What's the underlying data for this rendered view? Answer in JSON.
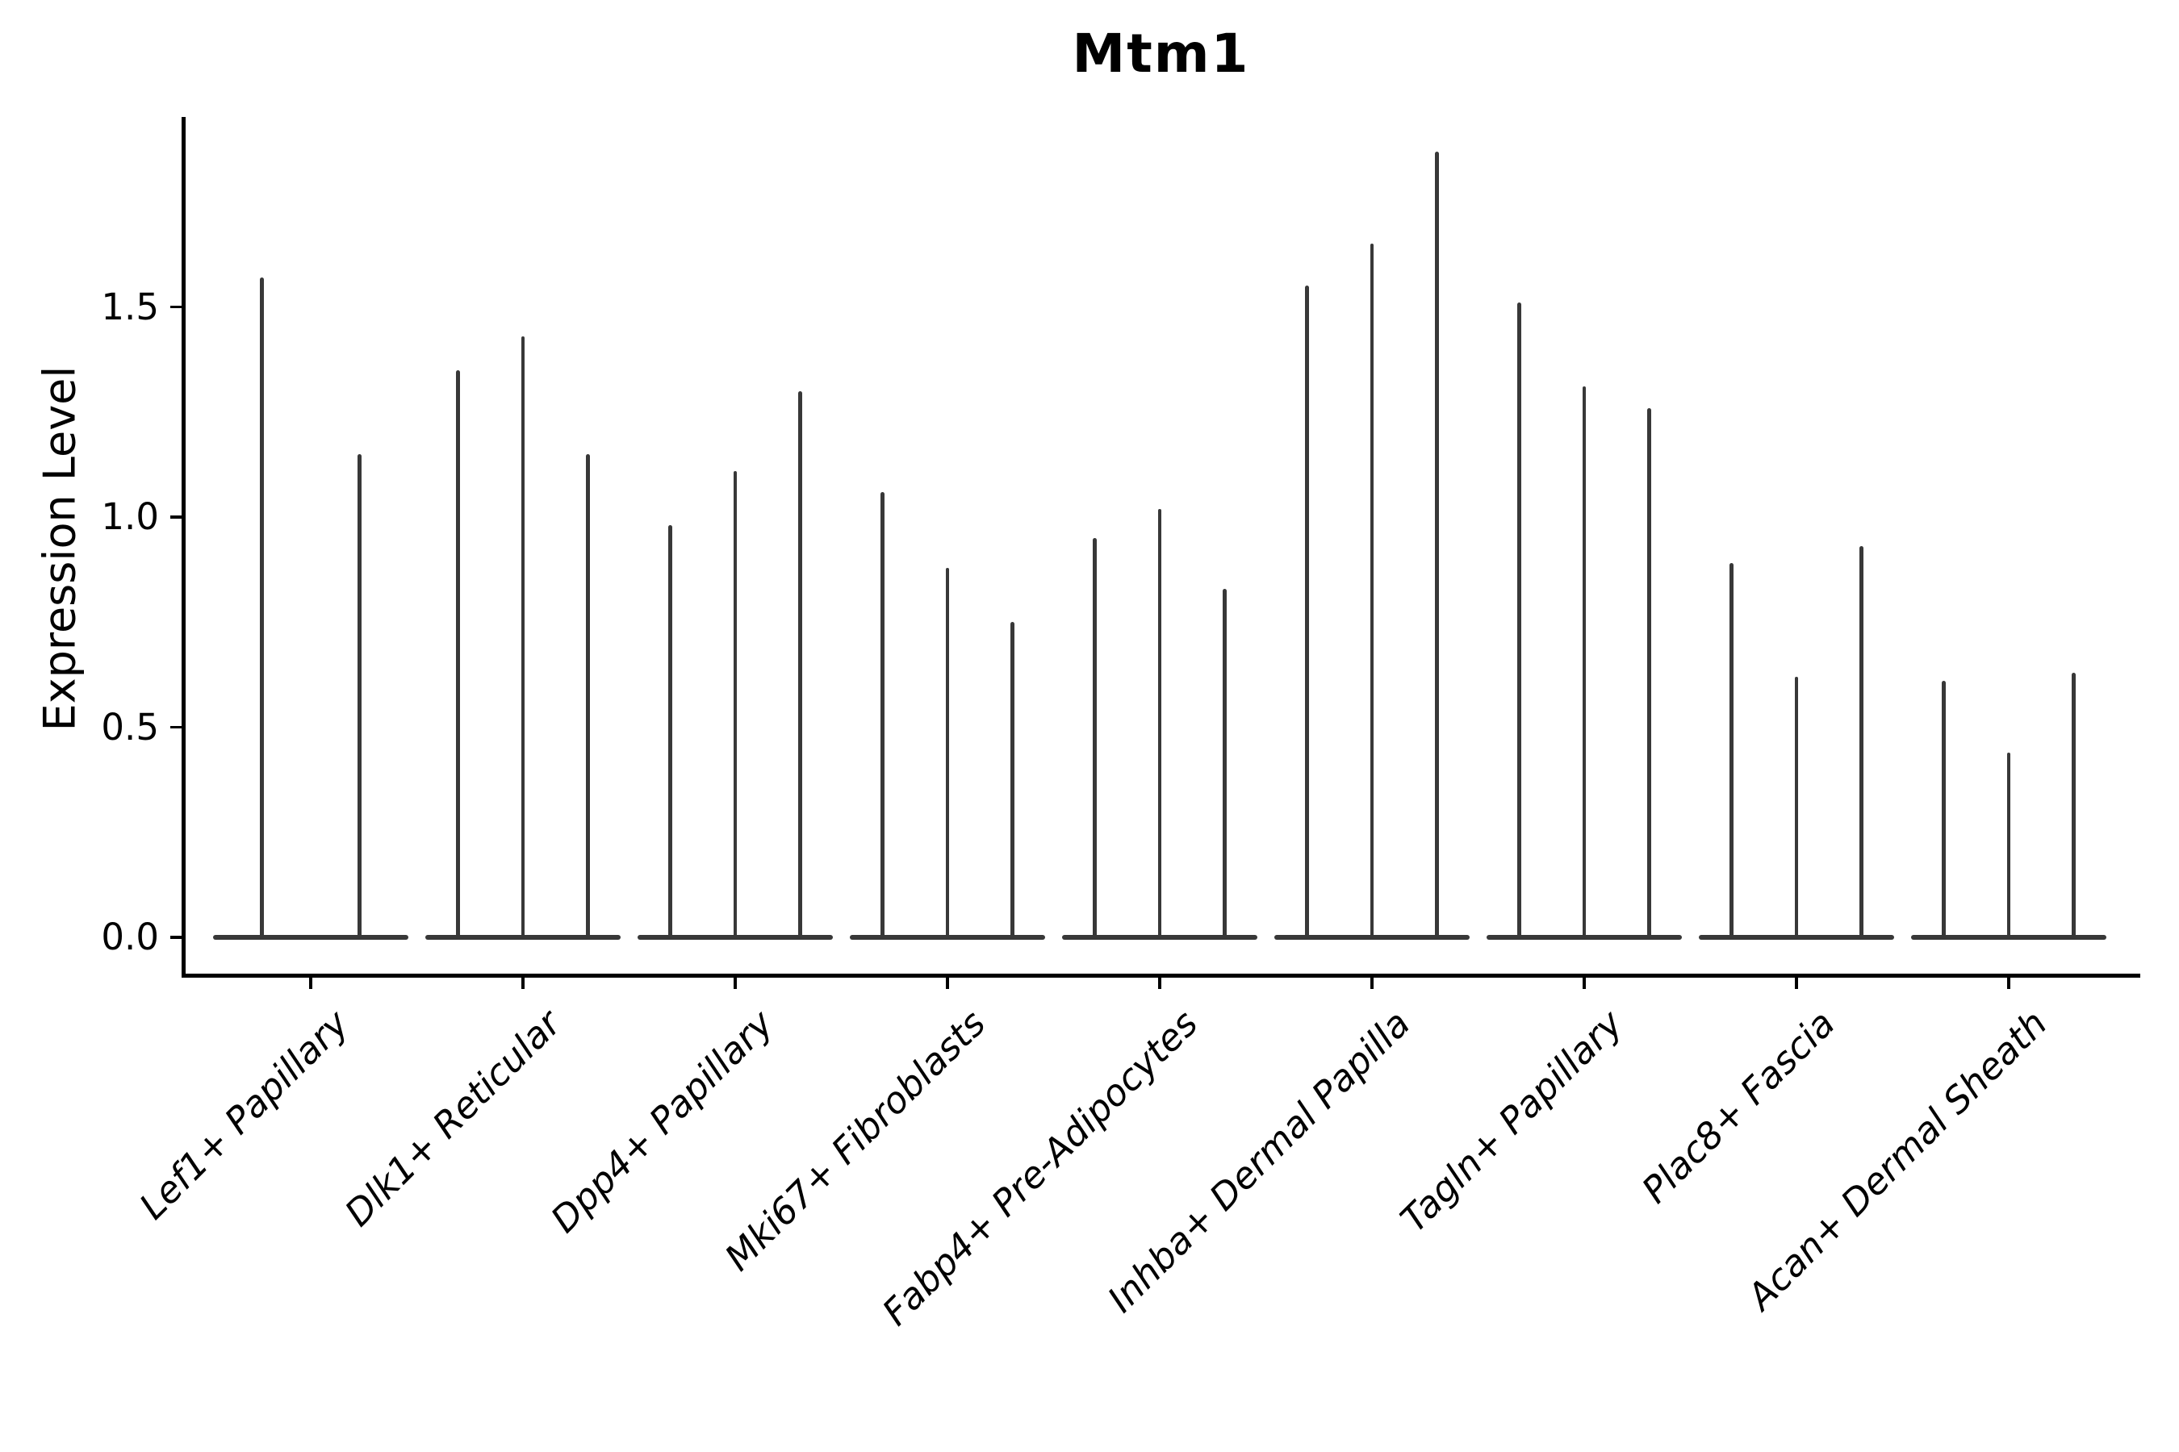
{
  "chart_data": {
    "type": "violin",
    "title": "Mtm1",
    "ylabel": "Expression Level",
    "xlabel": "",
    "ytick_labels": [
      "0.0",
      "0.5",
      "1.0",
      "1.5"
    ],
    "ylim": [
      -0.09,
      1.95
    ],
    "grid": false,
    "legend_position": "none",
    "description": "Needle-like violins: each violin is flat/wide at expression 0 with a thin spike up to its maximum expression value. Each category holds 2-3 violins.",
    "groups": [
      {
        "category": "Lef1+ Papillary",
        "violin_max_expression": [
          1.57,
          1.15
        ]
      },
      {
        "category": "Dlk1+ Reticular",
        "violin_max_expression": [
          1.35,
          1.43,
          1.15
        ]
      },
      {
        "category": "Dpp4+ Papillary",
        "violin_max_expression": [
          0.98,
          1.11,
          1.3
        ]
      },
      {
        "category": "Mki67+ Fibroblasts",
        "violin_max_expression": [
          1.06,
          0.88,
          0.75
        ]
      },
      {
        "category": "Fabp4+ Pre-Adipocytes",
        "violin_max_expression": [
          0.95,
          1.02,
          0.83
        ]
      },
      {
        "category": "Inhba+ Dermal Papilla",
        "violin_max_expression": [
          1.55,
          1.65,
          1.87
        ]
      },
      {
        "category": "Tagln+ Papillary",
        "violin_max_expression": [
          1.51,
          1.31,
          1.26
        ]
      },
      {
        "category": "Plac8+ Fascia",
        "violin_max_expression": [
          0.89,
          0.62,
          0.93
        ]
      },
      {
        "category": "Acan+ Dermal Sheath",
        "violin_max_expression": [
          0.61,
          0.44,
          0.63
        ]
      }
    ],
    "style": {
      "violin_color": "#383838",
      "axis_color": "#000000",
      "text_color": "#000000",
      "background_color": "#ffffff"
    }
  }
}
